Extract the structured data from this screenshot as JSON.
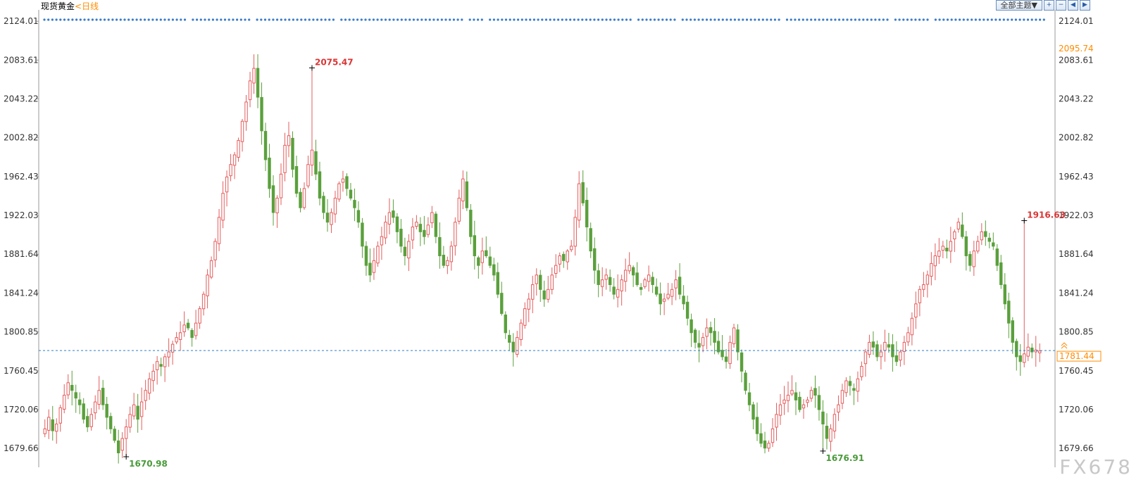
{
  "header": {
    "title": "现货黄金",
    "period": "<日线",
    "theme_button": "全部主题▼",
    "tool_icons": [
      "zoom-in-icon",
      "zoom-out-icon",
      "prev-icon",
      "next-icon"
    ]
  },
  "watermark": "FX678",
  "colors": {
    "up": "#e35d5d",
    "down": "#5aa03c",
    "axis_text": "#333333",
    "price_line": "#2f7fc6",
    "current_price": "#ff8c00",
    "high_label": "#d93636",
    "low_label": "#4a9a3a",
    "event_dots": "#3a7cc8"
  },
  "chart_data": {
    "type": "candlestick",
    "title": "现货黄金",
    "period": "日线",
    "ylim": [
      1660,
      2130
    ],
    "y_ticks": [
      "2124.01",
      "2083.61",
      "2043.22",
      "2002.82",
      "1962.43",
      "1922.03",
      "1881.64",
      "1841.24",
      "1800.85",
      "1760.45",
      "1720.06",
      "1679.66"
    ],
    "current_price": "1781.44",
    "current_price_value": 1781.44,
    "top_right_label": "2095.74",
    "annotations": [
      {
        "text": "2075.47",
        "value": 2075.47,
        "index": 69,
        "kind": "high"
      },
      {
        "text": "1670.98",
        "value": 1670.98,
        "index": 21,
        "kind": "low"
      },
      {
        "text": "1676.91",
        "value": 1676.91,
        "index": 201,
        "kind": "low"
      },
      {
        "text": "1916.63",
        "value": 1916.63,
        "index": 253,
        "kind": "high"
      }
    ],
    "closes": [
      1700,
      1712,
      1698,
      1705,
      1722,
      1735,
      1748,
      1740,
      1732,
      1725,
      1710,
      1702,
      1715,
      1728,
      1740,
      1725,
      1712,
      1700,
      1688,
      1675,
      1690,
      1702,
      1715,
      1725,
      1710,
      1728,
      1740,
      1752,
      1760,
      1770,
      1765,
      1775,
      1780,
      1788,
      1795,
      1800,
      1808,
      1805,
      1795,
      1810,
      1825,
      1840,
      1860,
      1875,
      1895,
      1920,
      1945,
      1962,
      1975,
      1985,
      2000,
      2020,
      2040,
      2062,
      2075,
      2045,
      2010,
      1980,
      1950,
      1925,
      1940,
      1965,
      1995,
      2005,
      1970,
      1945,
      1930,
      1950,
      1975,
      1990,
      1965,
      1940,
      1925,
      1915,
      1925,
      1940,
      1955,
      1960,
      1950,
      1940,
      1930,
      1915,
      1890,
      1870,
      1860,
      1875,
      1890,
      1900,
      1915,
      1925,
      1920,
      1905,
      1890,
      1880,
      1895,
      1910,
      1915,
      1905,
      1900,
      1912,
      1925,
      1900,
      1880,
      1870,
      1875,
      1890,
      1915,
      1940,
      1960,
      1930,
      1900,
      1880,
      1870,
      1885,
      1880,
      1870,
      1860,
      1840,
      1820,
      1800,
      1790,
      1780,
      1795,
      1810,
      1825,
      1835,
      1850,
      1860,
      1845,
      1835,
      1845,
      1860,
      1870,
      1880,
      1875,
      1885,
      1890,
      1920,
      1955,
      1935,
      1910,
      1885,
      1865,
      1850,
      1855,
      1860,
      1850,
      1840,
      1845,
      1855,
      1865,
      1870,
      1860,
      1850,
      1845,
      1855,
      1860,
      1850,
      1840,
      1830,
      1835,
      1840,
      1845,
      1855,
      1840,
      1830,
      1815,
      1800,
      1790,
      1785,
      1795,
      1805,
      1800,
      1790,
      1780,
      1775,
      1770,
      1790,
      1805,
      1780,
      1760,
      1740,
      1725,
      1710,
      1695,
      1685,
      1680,
      1685,
      1700,
      1715,
      1725,
      1730,
      1735,
      1740,
      1730,
      1720,
      1725,
      1730,
      1740,
      1735,
      1720,
      1705,
      1690,
      1700,
      1715,
      1725,
      1740,
      1750,
      1745,
      1740,
      1752,
      1765,
      1780,
      1790,
      1785,
      1775,
      1780,
      1790,
      1785,
      1775,
      1770,
      1780,
      1790,
      1800,
      1815,
      1830,
      1845,
      1850,
      1860,
      1872,
      1880,
      1885,
      1890,
      1885,
      1895,
      1905,
      1915,
      1900,
      1880,
      1870,
      1885,
      1895,
      1905,
      1900,
      1895,
      1890,
      1870,
      1850,
      1830,
      1810,
      1790,
      1775,
      1770,
      1778,
      1785,
      1780,
      1782,
      1781
    ]
  }
}
